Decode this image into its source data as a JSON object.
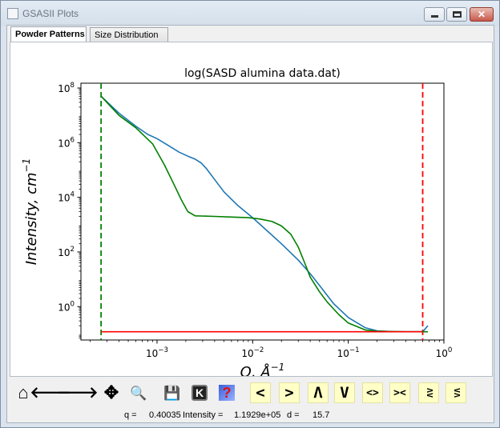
{
  "window": {
    "title": "GSASII Plots",
    "close_glyph": "✕"
  },
  "tabs": [
    {
      "label": "Powder Patterns",
      "active": true
    },
    {
      "label": "Size Distribution",
      "active": false
    }
  ],
  "chart_data": {
    "type": "line",
    "title": "log(SASD alumina data.dat)",
    "xlabel": "Q, Å",
    "xlabel_sup": "−1",
    "ylabel": "Intensity, cm",
    "ylabel_sup": "−1",
    "xscale": "log",
    "yscale": "log",
    "xlim": [
      0.00016,
      1.0
    ],
    "ylim": [
      0.06,
      150000000
    ],
    "xticks": [
      {
        "value": 0.001,
        "base": "10",
        "exp": "−3"
      },
      {
        "value": 0.01,
        "base": "10",
        "exp": "−2"
      },
      {
        "value": 0.1,
        "base": "10",
        "exp": "−1"
      },
      {
        "value": 1.0,
        "base": "10",
        "exp": "0"
      }
    ],
    "yticks": [
      {
        "value": 1,
        "base": "10",
        "exp": "0"
      },
      {
        "value": 100,
        "base": "10",
        "exp": "2"
      },
      {
        "value": 10000,
        "base": "10",
        "exp": "4"
      },
      {
        "value": 1000000,
        "base": "10",
        "exp": "6"
      },
      {
        "value": 100000000,
        "base": "10",
        "exp": "8"
      }
    ],
    "series": [
      {
        "color": "#1f77b4",
        "points": [
          [
            0.00026,
            50000000
          ],
          [
            0.0004,
            12000000
          ],
          [
            0.0006,
            4000000
          ],
          [
            0.0008,
            2000000
          ],
          [
            0.001,
            1400000
          ],
          [
            0.0013,
            800000
          ],
          [
            0.0017,
            450000
          ],
          [
            0.0021,
            320000
          ],
          [
            0.0025,
            250000
          ],
          [
            0.0029,
            180000
          ],
          [
            0.0033,
            110000
          ],
          [
            0.004,
            45000
          ],
          [
            0.005,
            16000
          ],
          [
            0.007,
            5000
          ],
          [
            0.01,
            1800
          ],
          [
            0.015,
            500
          ],
          [
            0.02,
            200
          ],
          [
            0.03,
            50
          ],
          [
            0.04,
            16
          ],
          [
            0.05,
            6
          ],
          [
            0.07,
            1.3
          ],
          [
            0.1,
            0.4
          ],
          [
            0.15,
            0.17
          ],
          [
            0.2,
            0.13
          ],
          [
            0.3,
            0.12
          ],
          [
            0.45,
            0.12
          ],
          [
            0.6,
            0.12
          ],
          [
            0.68,
            0.2
          ]
        ]
      },
      {
        "color": "#008000",
        "points": [
          [
            0.00026,
            50000000
          ],
          [
            0.0004,
            10000000
          ],
          [
            0.0006,
            3500000
          ],
          [
            0.0009,
            900000
          ],
          [
            0.0012,
            150000
          ],
          [
            0.0015,
            30000
          ],
          [
            0.0018,
            8000
          ],
          [
            0.0021,
            3000
          ],
          [
            0.0025,
            2100
          ],
          [
            0.004,
            2000
          ],
          [
            0.006,
            1900
          ],
          [
            0.009,
            1800
          ],
          [
            0.012,
            1600
          ],
          [
            0.016,
            1300
          ],
          [
            0.02,
            900
          ],
          [
            0.025,
            450
          ],
          [
            0.03,
            150
          ],
          [
            0.035,
            40
          ],
          [
            0.04,
            12
          ],
          [
            0.05,
            3.5
          ],
          [
            0.06,
            1.5
          ],
          [
            0.08,
            0.5
          ],
          [
            0.1,
            0.25
          ],
          [
            0.15,
            0.14
          ],
          [
            0.2,
            0.125
          ],
          [
            0.4,
            0.12
          ],
          [
            0.68,
            0.12
          ]
        ]
      },
      {
        "color": "#ff0000",
        "points": [
          [
            0.00026,
            0.12
          ],
          [
            0.6,
            0.12
          ]
        ]
      }
    ],
    "vlines": [
      {
        "x": 0.00026,
        "color": "#008000"
      },
      {
        "x": 0.6,
        "color": "#ff0000"
      }
    ]
  },
  "toolbar": [
    {
      "name": "home-icon",
      "glyph": "⌂"
    },
    {
      "name": "back-icon",
      "glyph": "🡐"
    },
    {
      "name": "forward-icon",
      "glyph": "🡒"
    },
    {
      "name": "pan-icon",
      "glyph": "✥"
    },
    {
      "name": "zoom-icon",
      "glyph": "🔍"
    },
    {
      "name": "save-icon",
      "glyph": "💾"
    },
    {
      "name": "keyboard-k-icon",
      "glyph": "K"
    },
    {
      "name": "help-icon",
      "glyph": "?"
    },
    {
      "name": "shift-left-icon",
      "glyph": "<"
    },
    {
      "name": "shift-right-icon",
      "glyph": ">"
    },
    {
      "name": "shift-up-icon",
      "glyph": "Λ"
    },
    {
      "name": "shift-down-icon",
      "glyph": "V"
    },
    {
      "name": "expand-x-icon",
      "glyph": "<>"
    },
    {
      "name": "contract-x-icon",
      "glyph": "><"
    },
    {
      "name": "expand-y-icon",
      "glyph": "ΛV"
    },
    {
      "name": "contract-y-icon",
      "glyph": "VΛ"
    }
  ],
  "status": {
    "q_label": "q =",
    "q_value": "0.40035",
    "intensity_label": "Intensity =",
    "intensity_value": "1.1929e+05",
    "d_label": "d =",
    "d_value": "15.7"
  }
}
